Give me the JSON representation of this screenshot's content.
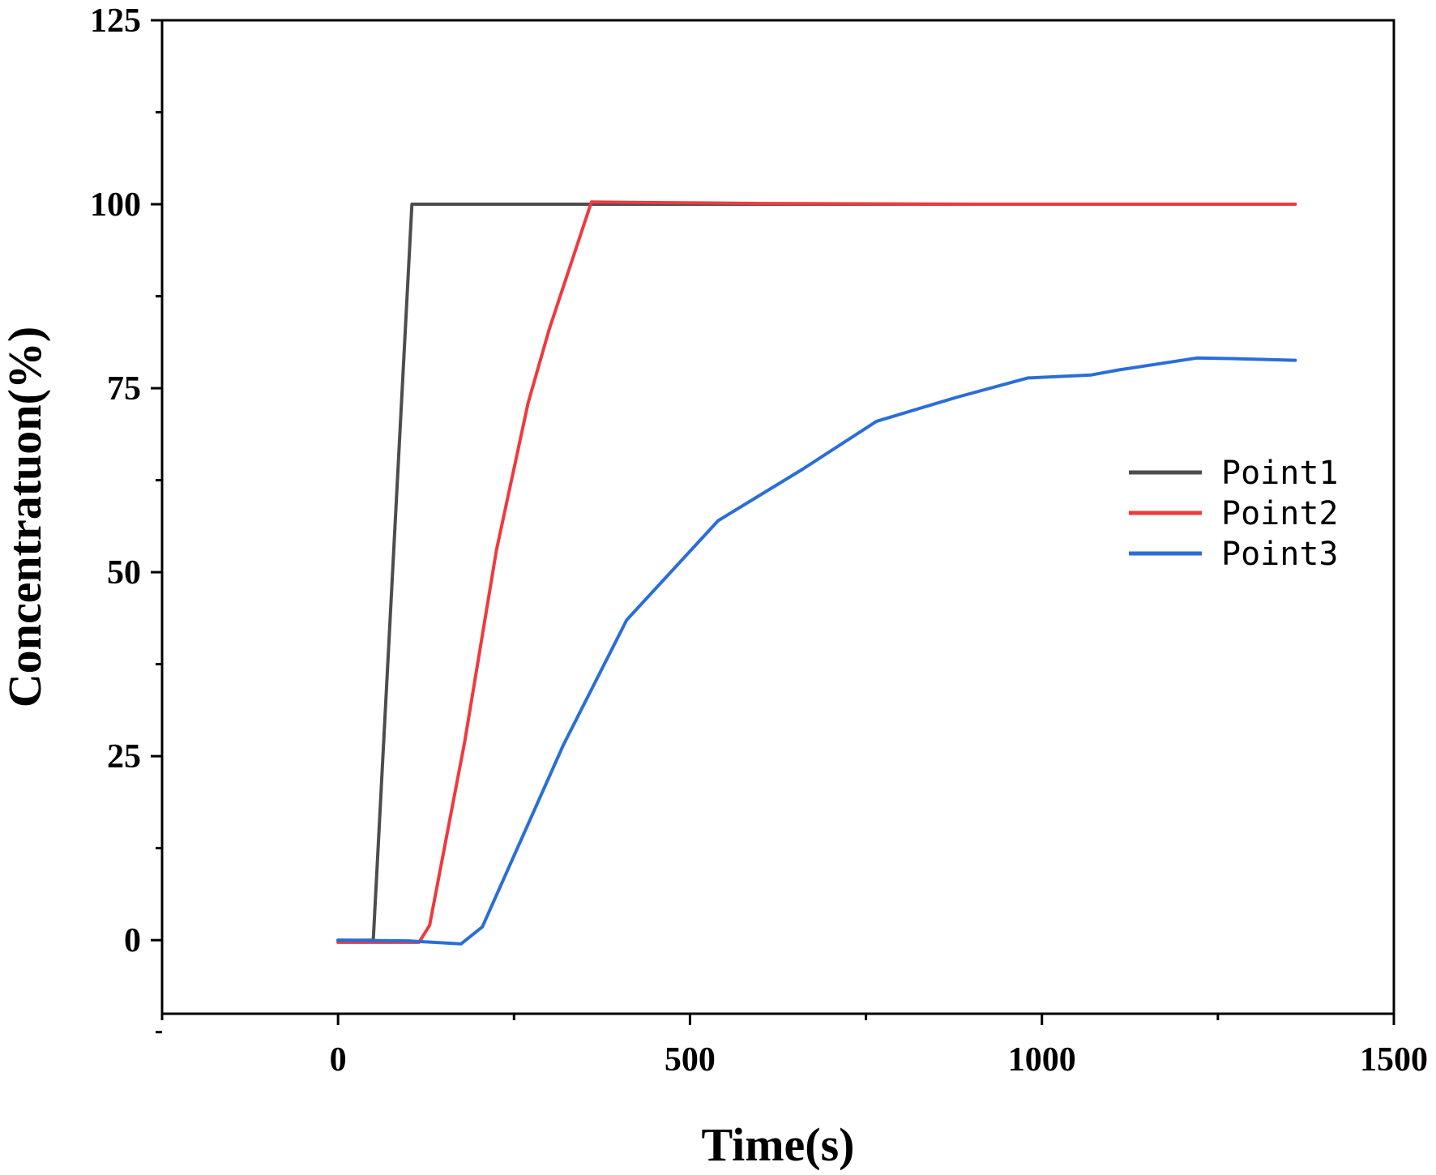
{
  "chart_data": {
    "type": "line",
    "title": "",
    "xlabel": "Time(s)",
    "ylabel": "Concentratuon(%)",
    "xlim": [
      -250,
      1500
    ],
    "ylim": [
      -10,
      125
    ],
    "xticks": [
      0,
      500,
      1000,
      1500
    ],
    "yticks": [
      0,
      25,
      50,
      75,
      100,
      125
    ],
    "x_minor_ticks": [
      -250,
      250,
      750,
      1250
    ],
    "y_minor_ticks": [
      -12.5,
      12.5,
      37.5,
      62.5,
      87.5,
      112.5
    ],
    "grid": false,
    "legend_position": "right",
    "series": [
      {
        "name": "Point1",
        "color": "#4d4d4d",
        "x": [
          0,
          50,
          105,
          300,
          600,
          900,
          1250
        ],
        "y": [
          0,
          0,
          100,
          100,
          100,
          100,
          100
        ]
      },
      {
        "name": "Point2",
        "color": "#ee3a3f",
        "x": [
          0,
          50,
          115,
          130,
          180,
          225,
          270,
          300,
          360,
          600,
          900,
          1200,
          1360
        ],
        "y": [
          -0.3,
          -0.3,
          -0.3,
          2,
          27,
          53,
          73,
          83,
          100.3,
          100.1,
          100,
          100,
          100
        ]
      },
      {
        "name": "Point3",
        "color": "#2a6ed7",
        "x": [
          0,
          100,
          175,
          205,
          320,
          410,
          540,
          660,
          765,
          880,
          980,
          1070,
          1110,
          1220,
          1280,
          1360
        ],
        "y": [
          0,
          -0.1,
          -0.5,
          1.8,
          26.5,
          43.5,
          57,
          64,
          70.5,
          73.8,
          76.4,
          76.8,
          77.5,
          79.1,
          79,
          78.8
        ]
      }
    ]
  }
}
